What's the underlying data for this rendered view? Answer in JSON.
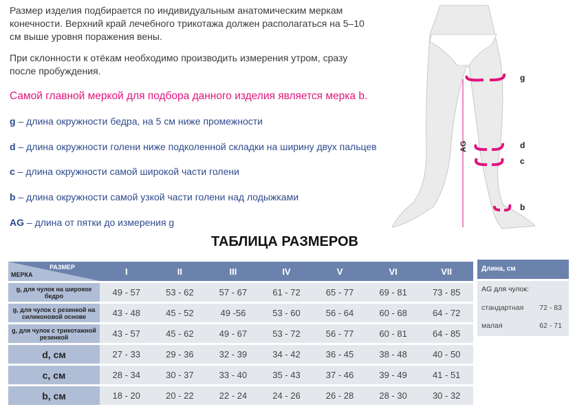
{
  "intro": {
    "p1_lines": [
      "Размер изделия подбирается по индивидуальным анатомическим меркам",
      "конечности. Верхний край лечебного трикотажа должен располагаться на 5–10",
      "см выше уровня поражения вены."
    ],
    "p2_lines": [
      "При склонности к отёкам необходимо производить измерения утром, сразу",
      "после пробуждения."
    ],
    "highlight": "Самой главной меркой для подбора данного изделия является мерка b."
  },
  "measures": [
    {
      "key": "g",
      "text": " – длина окружности бедра, на 5 см ниже промежности"
    },
    {
      "key": "d",
      "text": " – длина окружности голени ниже подколенной складки на ширину двух пальцев"
    },
    {
      "key": "c",
      "text": " – длина окружности самой широкой части голени"
    },
    {
      "key": "b",
      "text": " – длина окружности самой узкой части голени над лодыжками"
    },
    {
      "key": "AG",
      "text": " – длина от пятки до измерения g"
    }
  ],
  "figure": {
    "labels": {
      "g": "g",
      "d": "d",
      "c": "c",
      "b": "b",
      "ag": "AG"
    },
    "accent": "#e0157f"
  },
  "table": {
    "title": "ТАБЛИЦА РАЗМЕРОВ",
    "corner_size": "РАЗМЕР",
    "corner_measure": "МЕРКА",
    "sizes": [
      "I",
      "II",
      "III",
      "IV",
      "V",
      "VI",
      "VII"
    ],
    "rows": [
      {
        "label": "g, для чулок на широкое бедро",
        "values": [
          "49 - 57",
          "53 - 62",
          "57 - 67",
          "61 - 72",
          "65 - 77",
          "69 - 81",
          "73 - 85"
        ]
      },
      {
        "label": "g, для чулок с  резинкой на силиконовой основе",
        "values": [
          "43 - 48",
          "45 - 52",
          "49 -56",
          "53 - 60",
          "56 - 64",
          "60 - 68",
          "64 - 72"
        ]
      },
      {
        "label": "g, для чулок с трикотажной резинкой",
        "values": [
          "43 - 57",
          "45 - 62",
          "49 - 67",
          "53 - 72",
          "56 - 77",
          "60 - 81",
          "64 - 85"
        ]
      },
      {
        "label": "d, см",
        "values": [
          "27 - 33",
          "29 - 36",
          "32 - 39",
          "34 - 42",
          "36 - 45",
          "38 - 48",
          "40 - 50"
        ]
      },
      {
        "label": "c, см",
        "values": [
          "28 - 34",
          "30 - 37",
          "33 - 40",
          "35 - 43",
          "37 - 46",
          "39 - 49",
          "41 - 51"
        ]
      },
      {
        "label": "b, см",
        "values": [
          "18 - 20",
          "20 - 22",
          "22 - 24",
          "24 - 26",
          "26 - 28",
          "28 - 30",
          "30 - 32"
        ]
      }
    ],
    "colors": {
      "header": "#6b82ad",
      "label": "#b0bdd6",
      "cell": "#e4e7ec"
    }
  },
  "length": {
    "header": "Длина, см",
    "subtitle": "AG для чулок:",
    "items": [
      {
        "name": "стандартная",
        "value": "72 - 83"
      },
      {
        "name": "малая",
        "value": "62 - 71"
      }
    ]
  }
}
